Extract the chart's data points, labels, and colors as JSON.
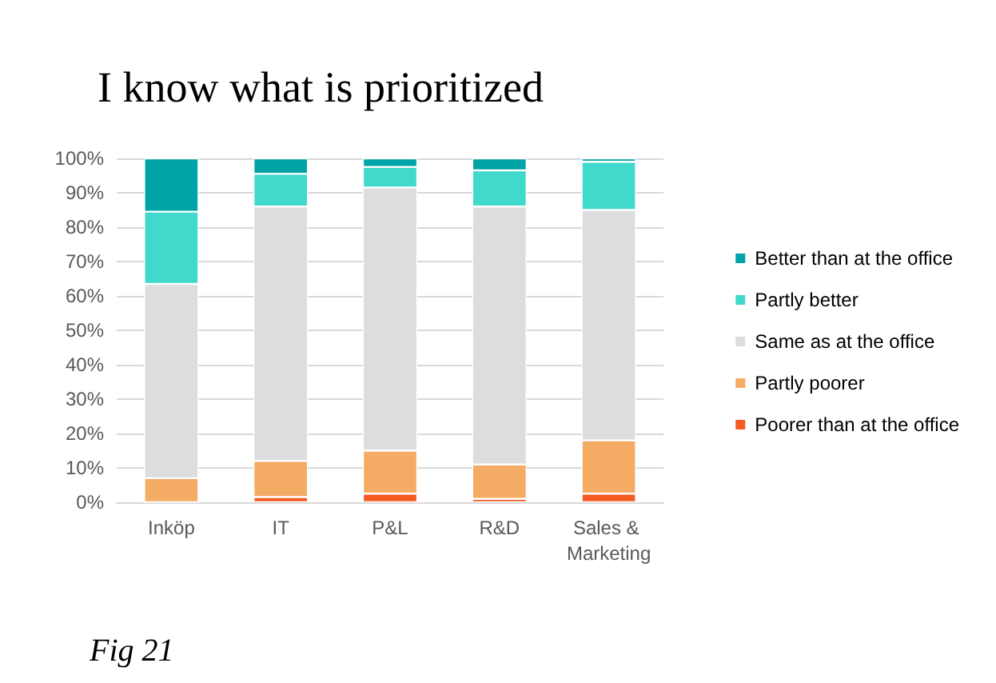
{
  "chart_data": {
    "type": "bar",
    "title": "I know what is prioritized",
    "stacked": true,
    "categories": [
      "Inköp",
      "IT",
      "P&L",
      "R&D",
      "Sales & Marketing"
    ],
    "series": [
      {
        "name": "Poorer than at the office",
        "color": "#f55a22",
        "values": [
          0,
          1.5,
          2.5,
          1,
          2.5
        ]
      },
      {
        "name": "Partly poorer",
        "color": "#f4ab64",
        "values": [
          7,
          10.5,
          12.5,
          10,
          15.5
        ]
      },
      {
        "name": "Same as at the office",
        "color": "#dcdddf",
        "values": [
          56.5,
          74,
          76.5,
          75,
          67
        ]
      },
      {
        "name": "Partly better",
        "color": "#40d9cc",
        "values": [
          21,
          9.5,
          6,
          10.5,
          14
        ]
      },
      {
        "name": "Better than at the office",
        "color": "#00a3a6",
        "values": [
          15.5,
          4.5,
          2.5,
          3.5,
          1
        ]
      }
    ],
    "ylim": [
      0,
      100
    ],
    "yticks": [
      {
        "value": 0,
        "label": "0%"
      },
      {
        "value": 10,
        "label": "10%"
      },
      {
        "value": 20,
        "label": "20%"
      },
      {
        "value": 30,
        "label": "30%"
      },
      {
        "value": 40,
        "label": "40%"
      },
      {
        "value": 50,
        "label": "50%"
      },
      {
        "value": 60,
        "label": "60%"
      },
      {
        "value": 70,
        "label": "70%"
      },
      {
        "value": 80,
        "label": "80%"
      },
      {
        "value": 90,
        "label": "90%"
      },
      {
        "value": 100,
        "label": "100%"
      }
    ],
    "grid": "y",
    "legend": "right",
    "annotations": [
      "Fig 21"
    ]
  }
}
